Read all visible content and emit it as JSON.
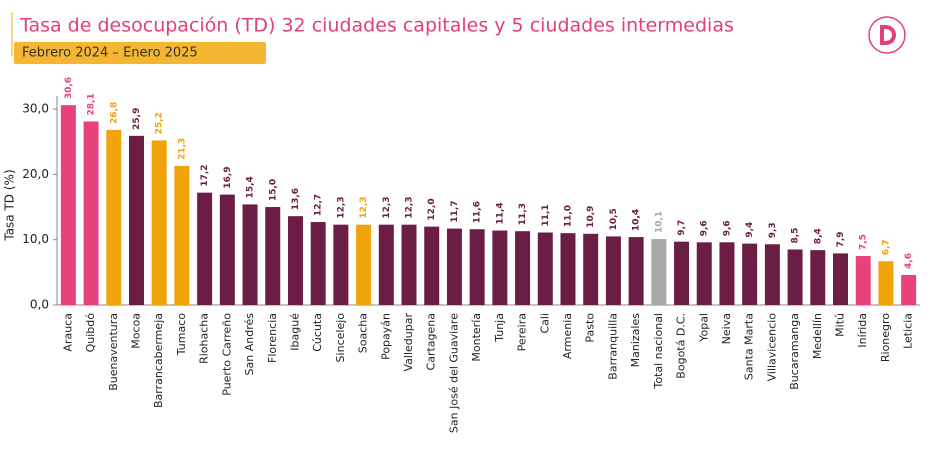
{
  "chart_data": {
    "type": "bar",
    "title": "Tasa de desocupación (TD) 32 ciudades capitales y 5 ciudades intermedias",
    "subtitle": "Febrero 2024 – Enero 2025",
    "y_label": "Tasa TD (%)",
    "categories": [
      "Arauca",
      "Quibdó",
      "Buenaventura",
      "Mocoa",
      "Barrancabermeja",
      "Tumaco",
      "Riohacha",
      "Puerto Carreño",
      "San Andrés",
      "Florencia",
      "Ibagué",
      "Cúcuta",
      "Sincelejo",
      "Soacha",
      "Popayán",
      "Valledupar",
      "Cartagena",
      "San José del Guaviare",
      "Montería",
      "Tunja",
      "Pereira",
      "Cali",
      "Armenia",
      "Pasto",
      "Barranquilla",
      "Manizales",
      "Total nacional",
      "Bogotá D.C.",
      "Yopal",
      "Neiva",
      "Santa Marta",
      "Villavicencio",
      "Bucaramanga",
      "Medellín",
      "Mitú",
      "Inírida",
      "Rionegro",
      "Leticia"
    ],
    "values": [
      30.6,
      28.1,
      26.8,
      25.9,
      25.2,
      21.3,
      17.2,
      16.9,
      15.4,
      15.0,
      13.6,
      12.7,
      12.3,
      12.3,
      12.3,
      12.3,
      12.0,
      11.7,
      11.6,
      11.4,
      11.3,
      11.1,
      11.0,
      10.9,
      10.5,
      10.4,
      10.1,
      9.7,
      9.6,
      9.6,
      9.4,
      9.3,
      8.5,
      8.4,
      7.9,
      7.5,
      6.7,
      4.6
    ],
    "value_labels": [
      "30,6",
      "28,1",
      "26,8",
      "25,9",
      "25,2",
      "21,3",
      "17,2",
      "16,9",
      "15,4",
      "15,0",
      "13,6",
      "12,7",
      "12,3",
      "12,3",
      "12,3",
      "12,3",
      "12,0",
      "11,7",
      "11,6",
      "11,4",
      "11,3",
      "11,1",
      "11,0",
      "10,9",
      "10,5",
      "10,4",
      "10,1",
      "9,7",
      "9,6",
      "9,6",
      "9,4",
      "9,3",
      "8,5",
      "8,4",
      "7,9",
      "7,5",
      "6,7",
      "4,6"
    ],
    "colors": [
      "#e8427c",
      "#e8427c",
      "#f0a30a",
      "#6b1d45",
      "#f0a30a",
      "#f0a30a",
      "#6b1d45",
      "#6b1d45",
      "#6b1d45",
      "#6b1d45",
      "#6b1d45",
      "#6b1d45",
      "#6b1d45",
      "#f0a30a",
      "#6b1d45",
      "#6b1d45",
      "#6b1d45",
      "#6b1d45",
      "#6b1d45",
      "#6b1d45",
      "#6b1d45",
      "#6b1d45",
      "#6b1d45",
      "#6b1d45",
      "#6b1d45",
      "#6b1d45",
      "#a9a9a9",
      "#6b1d45",
      "#6b1d45",
      "#6b1d45",
      "#6b1d45",
      "#6b1d45",
      "#6b1d45",
      "#6b1d45",
      "#6b1d45",
      "#e8427c",
      "#f0a30a",
      "#e8427c"
    ],
    "ylim": [
      0,
      32
    ],
    "yticks": [
      {
        "value": 0,
        "label": "0,0"
      },
      {
        "value": 10,
        "label": "10,0"
      },
      {
        "value": 20,
        "label": "20,0"
      },
      {
        "value": 30,
        "label": "30,0"
      }
    ]
  }
}
